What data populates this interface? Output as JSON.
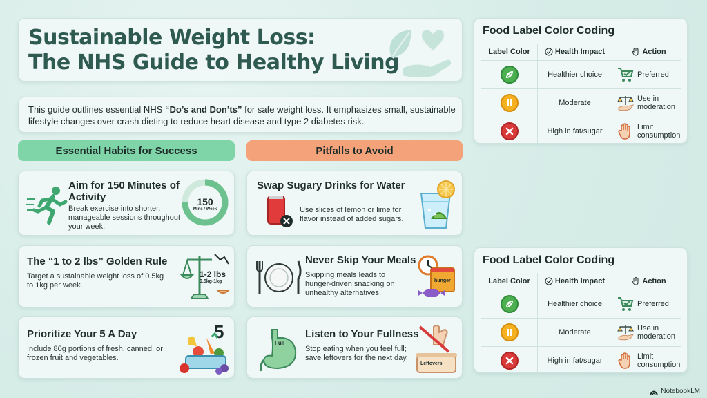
{
  "title": {
    "line1": "Sustainable Weight Loss:",
    "line2": "The NHS Guide to Healthy Living"
  },
  "intro": {
    "text_before": "This guide outlines essential NHS ",
    "emphasis": "“Do’s and Don’ts”",
    "text_after": " for safe weight loss. It emphasizes small, sustainable lifestyle changes over crash dieting to reduce heart disease and type 2 diabetes risk."
  },
  "habits": {
    "heading": "Essential Habits for Success",
    "items": [
      {
        "title": "Aim for 150 Minutes of Activity",
        "body": "Break exercise into shorter, manageable sessions throughout your week.",
        "icon": "running-person-icon",
        "ring_value": "150",
        "ring_unit": "Mins / Week",
        "ring_progress": 0.75
      },
      {
        "title": "The “1 to 2 lbs” Golden Rule",
        "body": "Target a sustainable weight loss of 0.5kg to 1kg per week.",
        "icon": "scale-icon",
        "badge_main": "1-2 lbs",
        "badge_sub": "0.5kg-1kg"
      },
      {
        "title": "Prioritize Your 5 A Day",
        "body": "Include 80g portions of fresh, canned, or frozen fruit and vegetables.",
        "icon": "fruit-bowl-icon",
        "badge_main": "5"
      }
    ]
  },
  "pitfalls": {
    "heading": "Pitfalls to Avoid",
    "items": [
      {
        "title": "Swap Sugary Drinks for Water",
        "body": "Use slices of lemon or lime for flavor instead of added sugars.",
        "icon": "soda-can-icon"
      },
      {
        "title": "Never Skip Your Meals",
        "body": "Skipping meals leads to hunger-driven snacking on unhealthy alternatives.",
        "icon": "plate-icon",
        "snack_label": "hunger"
      },
      {
        "title": "Listen to Your Fullness",
        "body": "Stop eating when you feel full; save leftovers for the next day.",
        "icon": "stomach-icon",
        "stomach_label": "Full",
        "box_label": "Leftovers"
      }
    ]
  },
  "food_label_tables": [
    {
      "title": "Food Label Color Coding",
      "headers": [
        "Label Color",
        "Health Impact",
        "Action"
      ],
      "rows": [
        {
          "color": "#4caf50",
          "symbol": "leaf",
          "impact": "Healthier choice",
          "action": "Preferred"
        },
        {
          "color": "#f5b120",
          "symbol": "pause",
          "impact": "Moderate",
          "action": "Use in moderation"
        },
        {
          "color": "#d93a3a",
          "symbol": "x",
          "impact": "High in fat/sugar",
          "action": "Limit consumption"
        }
      ]
    },
    {
      "title": "Food Label Color Coding",
      "headers": [
        "Label Color",
        "Health Impact",
        "Action"
      ],
      "rows": [
        {
          "color": "#4caf50",
          "symbol": "leaf",
          "impact": "Healthier choice",
          "action": "Preferred"
        },
        {
          "color": "#f5b120",
          "symbol": "pause",
          "impact": "Moderate",
          "action": "Use in moderation"
        },
        {
          "color": "#d93a3a",
          "symbol": "x",
          "impact": "High in fat/sugar",
          "action": "Limit consumption"
        }
      ]
    }
  ],
  "brand": "NotebookLM",
  "colors": {
    "title": "#2f5a50",
    "green_head": "#7fd4a8",
    "orange_head": "#f4a27a",
    "accent_green": "#4caf50"
  }
}
